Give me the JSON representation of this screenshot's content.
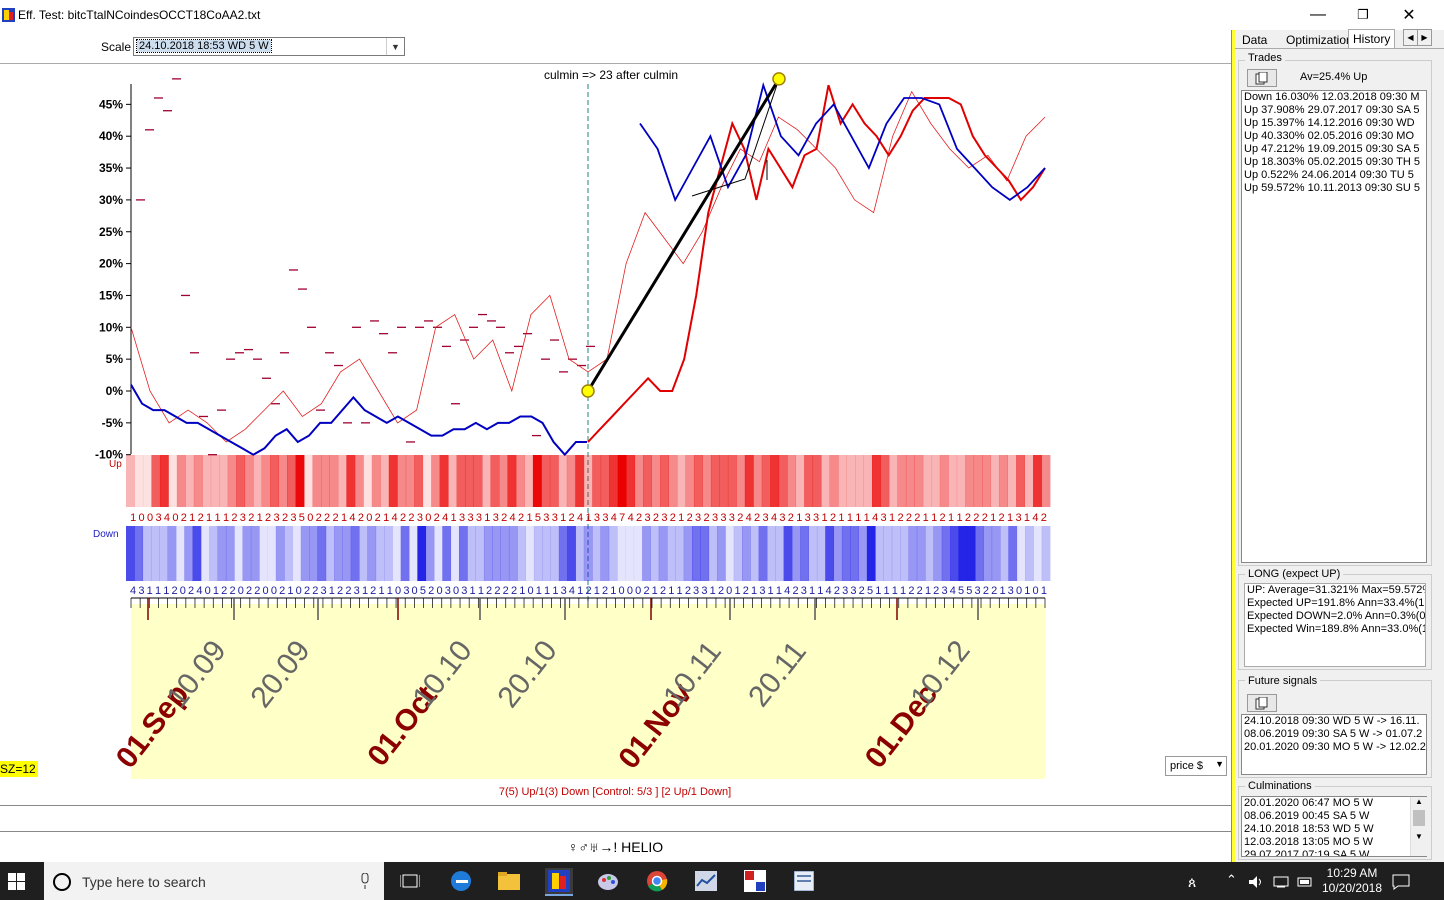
{
  "window": {
    "title": "Eff. Test: bitcTtalNCoindesOCCT18CoAA2.txt",
    "minimize": "—",
    "maximize": "❐",
    "close": "✕"
  },
  "toolbar": {
    "scale_label": "Scale",
    "scale_value": "24.10.2018  18:53 WD  5 W"
  },
  "chart": {
    "culmin_label": "culmin => 23 after culmin",
    "y_ticks": [
      "45%",
      "40%",
      "35%",
      "30%",
      "25%",
      "20%",
      "15%",
      "10%",
      "5%",
      "0%",
      "-5%",
      "-10%"
    ],
    "up_label": "Up",
    "down_label": "Down",
    "up_digits": "1003402121112321232350222142021422302413331324215331241334742323212323332423432133121111431222112112221213142",
    "down_digits": "431112024012202200210223122312110305203031122221011134121210002121123312012131142311423325111122123455322130101",
    "date_labels_dark": [
      "01.Sep",
      "01.Oct",
      "01.Nov",
      "01.Dec"
    ],
    "date_labels_gray": [
      "10.09",
      "20.09",
      "10.10",
      "20.10",
      "10.11",
      "20.11",
      "10.12"
    ],
    "sz_badge": "SZ=12",
    "stats": "7(5) Up/1(3) Down [Control: 5/3 ] [2 Up/1 Down]",
    "price_select": "price $",
    "planet_bar": "♀♂♅→! HELIO"
  },
  "chart_data": {
    "type": "line",
    "xlabel": "",
    "ylabel": "",
    "ylim": [
      -10,
      48
    ],
    "y_unit": "%",
    "x_labels": [
      "01.Sep",
      "10.09",
      "20.09",
      "01.Oct",
      "10.10",
      "20.10",
      "01.Nov",
      "10.11",
      "20.11",
      "01.Dec",
      "10.12"
    ],
    "series": [
      {
        "name": "",
        "color": "#0000c0",
        "values": [
          1,
          -2,
          -3,
          -3,
          -4,
          -5,
          -5,
          -6,
          -7,
          -8,
          -9,
          -10,
          -9,
          -7,
          -6,
          -8,
          -7,
          -5,
          -5,
          -3,
          -1,
          -3,
          -4,
          -5,
          -4,
          -5,
          -6,
          -7,
          -7,
          -6,
          -6,
          -5,
          -6,
          -5,
          -5,
          -4,
          -4,
          -5,
          -8,
          -10,
          -8,
          -8
        ]
      },
      {
        "name": "",
        "color": "#e00000",
        "values": [
          -8,
          -6,
          -4,
          -2,
          0,
          2,
          0,
          0,
          5,
          15,
          28,
          35,
          42,
          38,
          30,
          38,
          35,
          32,
          37,
          38,
          48,
          42,
          45,
          42,
          40,
          37,
          40,
          44,
          46,
          46,
          46,
          45,
          40,
          37,
          35,
          33,
          30,
          32,
          35
        ]
      },
      {
        "name": "",
        "color": "#e00000",
        "dashed": true,
        "values": [
          10,
          0,
          -5,
          -3,
          -5,
          -8,
          -6,
          -3,
          0,
          -4,
          -2,
          3,
          5,
          0,
          -5,
          -3,
          10,
          12,
          5,
          8,
          0,
          12,
          15,
          5,
          3,
          5,
          20,
          28,
          24,
          20,
          25,
          32,
          38,
          36,
          43,
          41,
          38,
          35,
          30,
          28,
          40,
          47,
          42,
          38,
          35,
          37,
          33,
          40,
          43
        ]
      }
    ],
    "markers": [
      {
        "label": "",
        "x_index": 0,
        "y": 0
      },
      {
        "label": "",
        "x_index": 1,
        "y": 49
      }
    ],
    "grid": false
  },
  "right_panel": {
    "tabs": [
      "Data",
      "Optimization",
      "History"
    ],
    "active_tab": "History",
    "trades_title": "Trades",
    "trades_summary": "Av=25.4% Up",
    "trades": [
      "Down 16.030%    12.03.2018  09:30 M",
      "Up 37.908%    29.07.2017  09:30 SA  5",
      "Up 15.397%    14.12.2016  09:30 WD",
      "Up 40.330%    02.05.2016  09:30 MO",
      "Up 47.212%    19.09.2015  09:30 SA  5",
      "Up 18.303%    05.02.2015  09:30 TH  5",
      "Up 0.522%    24.06.2014  09:30 TU  5",
      "Up 59.572%    10.11.2013  09:30 SU  5"
    ],
    "long_title": "LONG (expect UP)",
    "long_lines": [
      "UP: Average=31.321%  Max=59.572%",
      "Expected UP=191.8%  Ann=33.4%(1",
      "Expected DOWN=2.0%  Ann=0.3%(0",
      "Expected Win=189.8%  Ann=33.0%(1"
    ],
    "future_title": "Future signals",
    "future": [
      "24.10.2018  09:30 WD   5 W -> 16.11.",
      "08.06.2019  09:30 SA   5 W -> 01.07.2",
      "20.01.2020  09:30 MO   5 W -> 12.02.2"
    ],
    "culm_title": "Culminations",
    "culminations": [
      "20.01.2020  06:47 MO   5 W",
      "08.06.2019  00:45 SA   5 W",
      "24.10.2018  18:53 WD   5 W",
      "12.03.2018  13:05 MO   5 W",
      "29.07.2017  07:19 SA   5 W"
    ]
  },
  "taskbar": {
    "search_placeholder": "Type here to search",
    "time": "10:29 AM",
    "date": "10/20/2018"
  }
}
